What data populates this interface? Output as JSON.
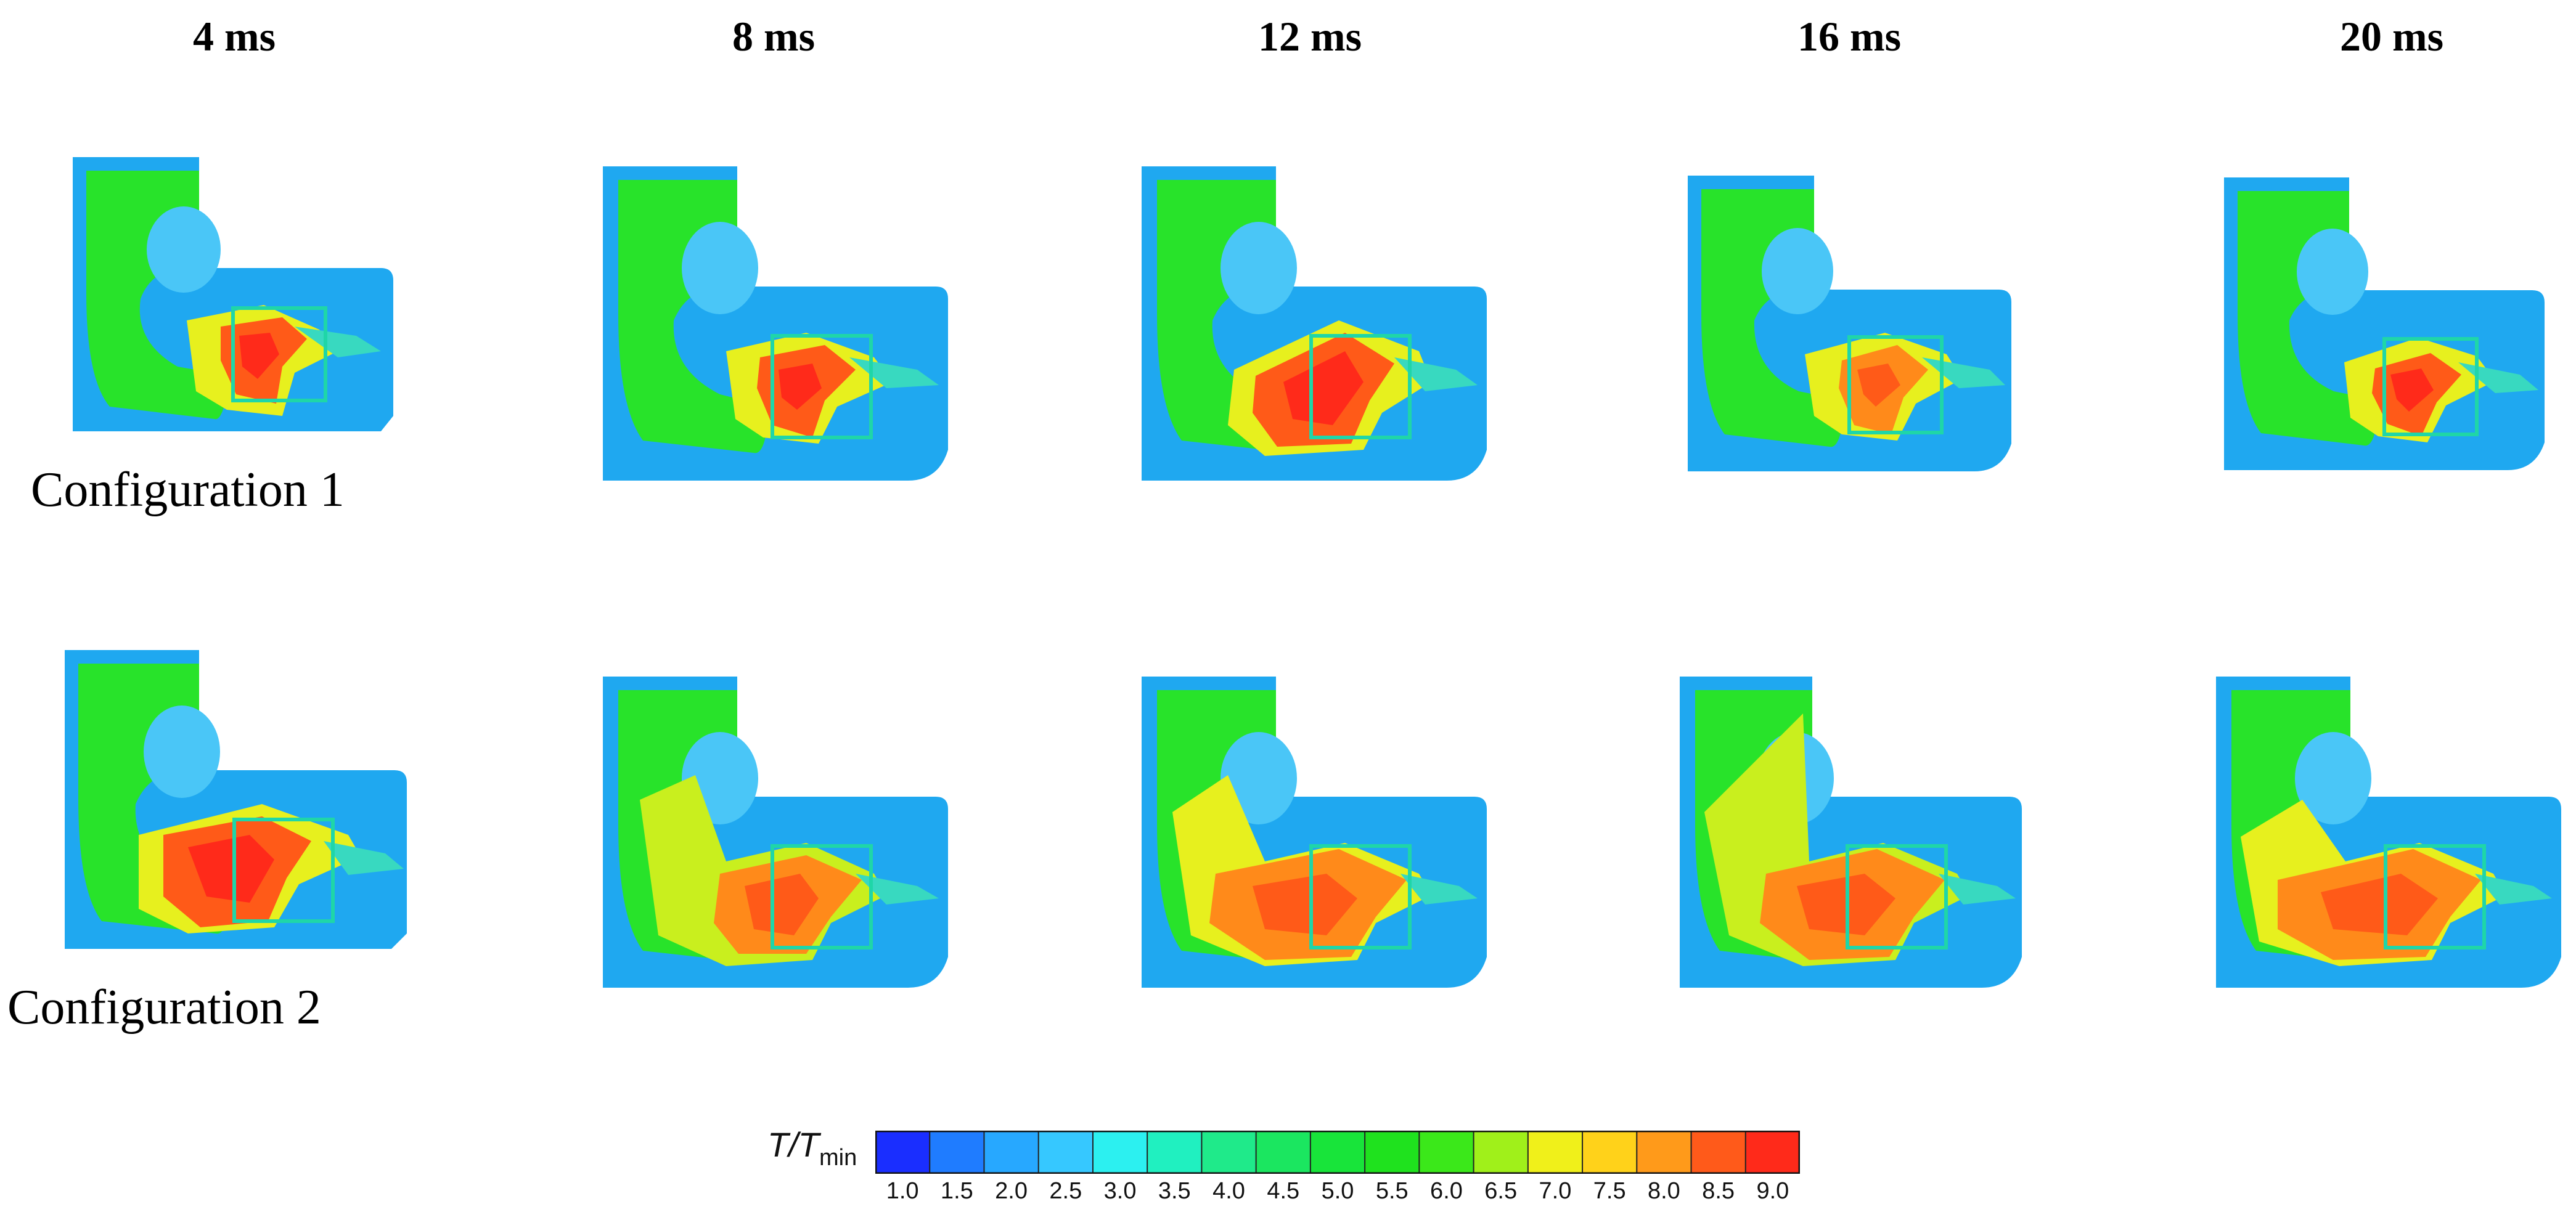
{
  "time_labels": [
    "4 ms",
    "8 ms",
    "12 ms",
    "16 ms",
    "20 ms"
  ],
  "configurations": [
    "Configuration 1",
    "Configuration 2"
  ],
  "colorbar": {
    "label_main": "T/T",
    "label_sub": "min",
    "ticks": [
      "1.0",
      "1.5",
      "2.0",
      "2.5",
      "3.0",
      "3.5",
      "4.0",
      "4.5",
      "5.0",
      "5.5",
      "6.0",
      "6.5",
      "7.0",
      "7.5",
      "8.0",
      "8.5",
      "9.0"
    ],
    "colors": [
      "#1a2eff",
      "#1f7cff",
      "#27a8ff",
      "#36c8ff",
      "#2cf0f0",
      "#20f0c0",
      "#1fea8a",
      "#1be660",
      "#18e43a",
      "#1fe21e",
      "#3be81a",
      "#a0f01a",
      "#f0f01a",
      "#ffd21a",
      "#ff9a1a",
      "#ff5a1a",
      "#ff2a1a"
    ]
  }
}
